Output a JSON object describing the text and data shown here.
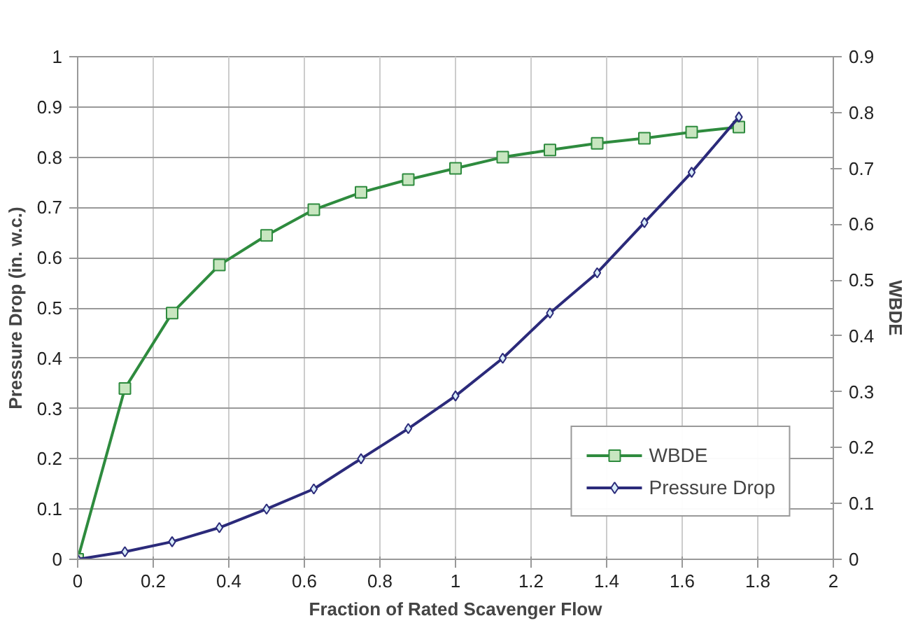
{
  "chart_data": {
    "type": "line",
    "xlabel": "Fraction of Rated Scavenger Flow",
    "ylabel": "Pressure Drop (in. w.c.)",
    "y2label": "WBDE",
    "x": [
      0,
      0.125,
      0.25,
      0.375,
      0.5,
      0.625,
      0.75,
      0.875,
      1,
      1.125,
      1.25,
      1.375,
      1.5,
      1.625,
      1.75
    ],
    "series": [
      {
        "name": "WBDE",
        "color": "#2e8b3e",
        "axis": "y2",
        "marker": "square",
        "values": [
          0,
          0.306,
          0.441,
          0.527,
          0.58,
          0.626,
          0.657,
          0.68,
          0.7,
          0.72,
          0.733,
          0.745,
          0.754,
          0.765,
          0.774
        ]
      },
      {
        "name": "Pressure Drop",
        "color": "#2b2a7a",
        "marker": "diamond",
        "values": [
          0,
          0.015,
          0.035,
          0.063,
          0.1,
          0.14,
          0.2,
          0.26,
          0.325,
          0.4,
          0.49,
          0.57,
          0.67,
          0.77,
          0.88
        ]
      }
    ],
    "xlim": [
      0,
      2
    ],
    "xticks": [
      0,
      0.2,
      0.4,
      0.6,
      0.8,
      1,
      1.2,
      1.4,
      1.6,
      1.8,
      2
    ],
    "ylim": [
      0,
      1
    ],
    "yticks": [
      0,
      0.1,
      0.2,
      0.3,
      0.4,
      0.5,
      0.6,
      0.7,
      0.8,
      0.9,
      1
    ],
    "y2lim": [
      0,
      0.9
    ],
    "y2ticks": [
      0,
      0.1,
      0.2,
      0.3,
      0.4,
      0.5,
      0.6,
      0.7,
      0.8,
      0.9
    ],
    "grid": true,
    "legend": "bottom right",
    "line_style": "solid"
  }
}
